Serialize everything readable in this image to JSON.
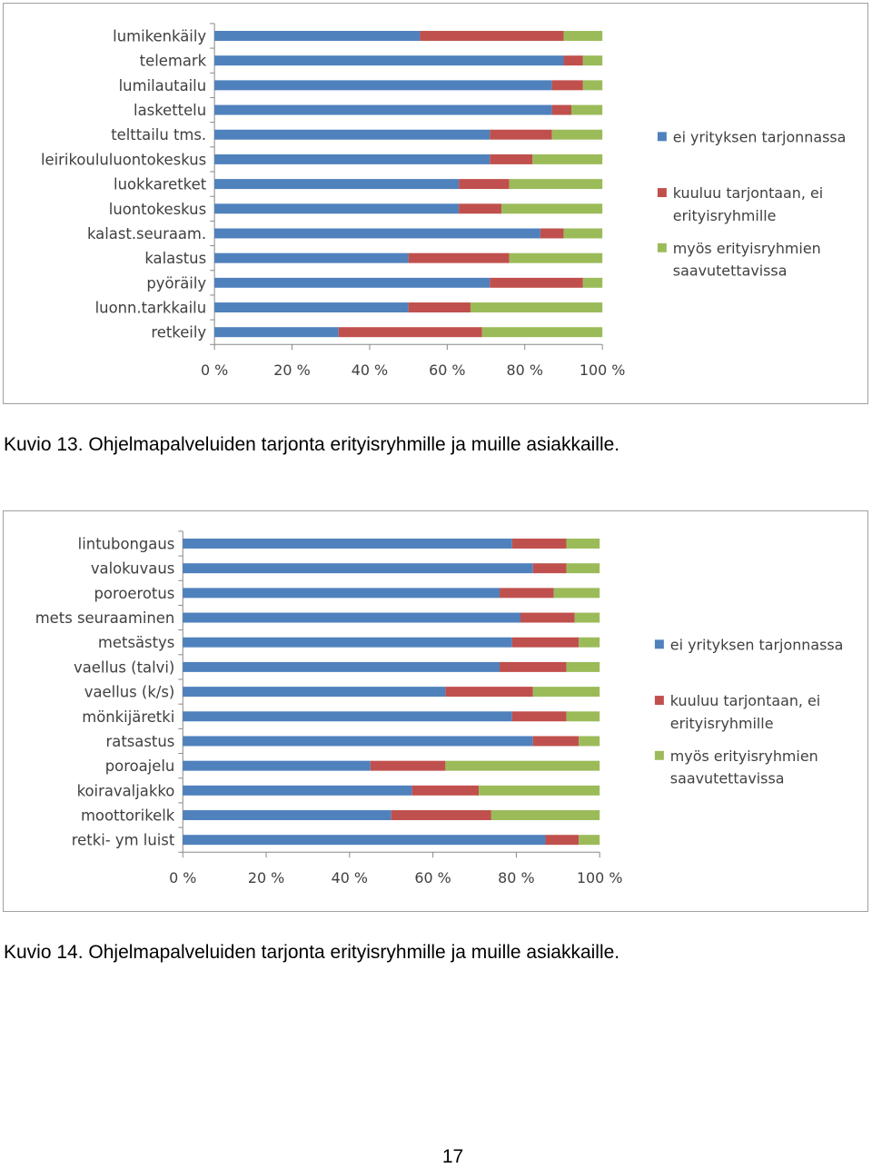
{
  "chart_data": [
    {
      "type": "bar",
      "orientation": "horizontal",
      "stacked": "percent",
      "categories": [
        "lumikenkäily",
        "telemark",
        "lumilautailu",
        "laskettelu",
        "telttailu tms.",
        "leirikoululuontokeskus",
        "luokkaretket",
        "luontokeskus",
        "kalast.seuraam.",
        "kalastus",
        "pyöräily",
        "luonn.tarkkailu",
        "retkeily"
      ],
      "series": [
        {
          "name": "ei yrityksen tarjonnassa",
          "color": "#4F81BD",
          "values": [
            53,
            90,
            87,
            87,
            71,
            71,
            63,
            63,
            84,
            50,
            71,
            50,
            32
          ]
        },
        {
          "name": "kuuluu tarjontaan, ei erityisryhmille",
          "color": "#C0504D",
          "values": [
            37,
            5,
            8,
            5,
            16,
            11,
            13,
            11,
            6,
            26,
            24,
            16,
            37
          ]
        },
        {
          "name": "myös erityisryhmien saavutettavissa",
          "color": "#9BBB59",
          "values": [
            10,
            5,
            5,
            8,
            13,
            18,
            24,
            26,
            10,
            24,
            5,
            34,
            31
          ]
        }
      ],
      "x_ticks": [
        "0 %",
        "20 %",
        "40 %",
        "60 %",
        "80 %",
        "100 %"
      ],
      "xlim": [
        0,
        100
      ],
      "grid": false,
      "legend": "right"
    },
    {
      "type": "bar",
      "orientation": "horizontal",
      "stacked": "percent",
      "categories": [
        "lintubongaus",
        "valokuvaus",
        "poroerotus",
        "mets seuraaminen",
        "metsästys",
        "vaellus (talvi)",
        "vaellus (k/s)",
        "mönkijäretki",
        "ratsastus",
        "poroajelu",
        "koiravaljakko",
        "moottorikelk",
        "retki- ym luist"
      ],
      "series": [
        {
          "name": "ei yrityksen tarjonnassa",
          "color": "#4F81BD",
          "values": [
            79,
            84,
            76,
            81,
            79,
            76,
            63,
            79,
            84,
            45,
            55,
            50,
            87
          ]
        },
        {
          "name": "kuuluu tarjontaan, ei erityisryhmille",
          "color": "#C0504D",
          "values": [
            13,
            8,
            13,
            13,
            16,
            16,
            21,
            13,
            11,
            18,
            16,
            24,
            8
          ]
        },
        {
          "name": "myös erityisryhmien saavutettavissa",
          "color": "#9BBB59",
          "values": [
            8,
            8,
            11,
            6,
            5,
            8,
            16,
            8,
            5,
            37,
            29,
            26,
            5
          ]
        }
      ],
      "x_ticks": [
        "0 %",
        "20 %",
        "40 %",
        "60 %",
        "80 %",
        "100 %"
      ],
      "xlim": [
        0,
        100
      ],
      "grid": false,
      "legend": "right"
    }
  ],
  "legend_lines": [
    [
      "ei yrityksen tarjonnassa"
    ],
    [
      "kuuluu tarjontaan, ei",
      "erityisryhmille"
    ],
    [
      "myös erityisryhmien",
      "saavutettavissa"
    ]
  ],
  "captions": {
    "kuvio13": "Kuvio 13. Ohjelmapalveluiden tarjonta erityisryhmille ja muille asiakkaille.",
    "kuvio14": "Kuvio 14. Ohjelmapalveluiden tarjonta erityisryhmille ja muille asiakkaille."
  },
  "page_number": "17"
}
